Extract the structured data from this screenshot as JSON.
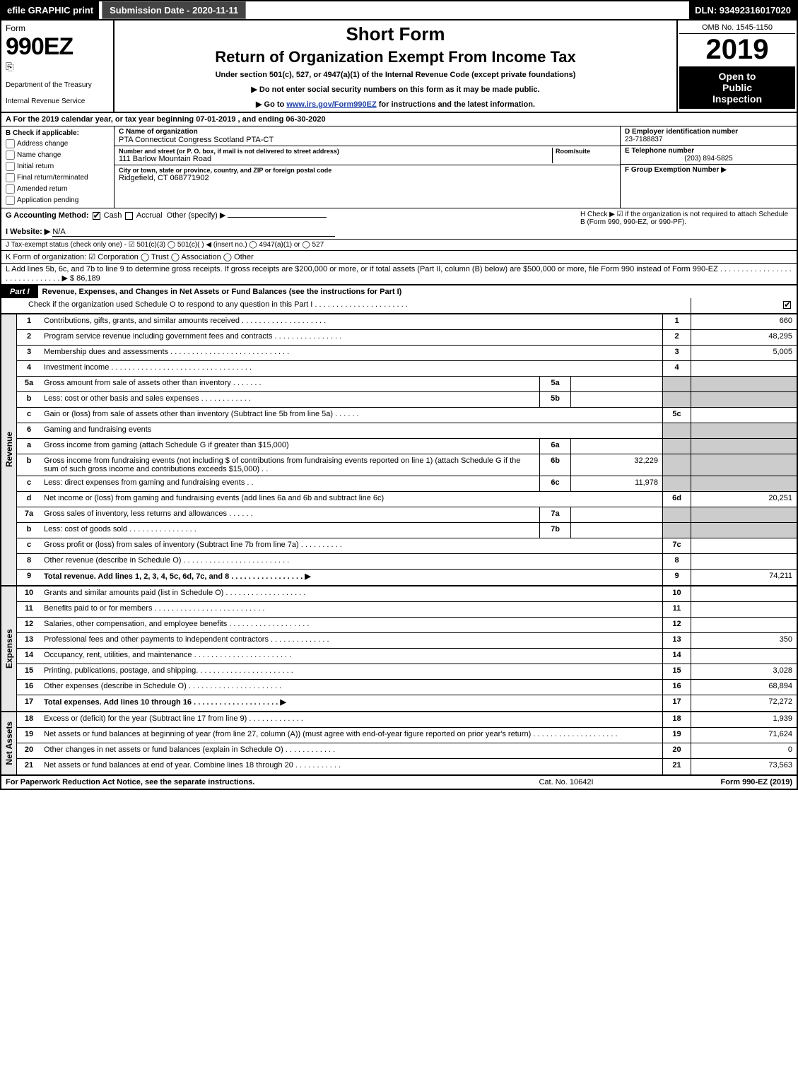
{
  "topbar": {
    "efile": "efile GRAPHIC print",
    "submission": "Submission Date - 2020-11-11",
    "dln": "DLN: 93492316017020"
  },
  "header": {
    "form_word": "Form",
    "form_number": "990EZ",
    "dept": "Department of the Treasury",
    "irs": "Internal Revenue Service",
    "short_form": "Short Form",
    "title": "Return of Organization Exempt From Income Tax",
    "sub1": "Under section 501(c), 527, or 4947(a)(1) of the Internal Revenue Code (except private foundations)",
    "sub2": "▶ Do not enter social security numbers on this form as it may be made public.",
    "sub3_pre": "▶ Go to ",
    "sub3_link": "www.irs.gov/Form990EZ",
    "sub3_post": " for instructions and the latest information.",
    "omb": "OMB No. 1545-1150",
    "year": "2019",
    "open1": "Open to",
    "open2": "Public",
    "open3": "Inspection"
  },
  "tax_year": "A For the 2019 calendar year, or tax year beginning 07-01-2019 , and ending 06-30-2020",
  "box_b": {
    "label": "B Check if applicable:",
    "items": [
      "Address change",
      "Name change",
      "Initial return",
      "Final return/terminated",
      "Amended return",
      "Application pending"
    ]
  },
  "box_c": {
    "label": "C Name of organization",
    "name": "PTA Connecticut Congress Scotland PTA-CT",
    "addr_label": "Number and street (or P. O. box, if mail is not delivered to street address)",
    "room_label": "Room/suite",
    "addr": "111 Barlow Mountain Road",
    "city_label": "City or town, state or province, country, and ZIP or foreign postal code",
    "city": "Ridgefield, CT  068771902"
  },
  "box_d": {
    "label": "D Employer identification number",
    "value": "23-7188837"
  },
  "box_e": {
    "label": "E Telephone number",
    "value": "(203) 894-5825"
  },
  "box_f": {
    "label": "F Group Exemption Number  ▶",
    "value": ""
  },
  "line_g": {
    "label": "G Accounting Method:",
    "cash": "Cash",
    "accrual": "Accrual",
    "other": "Other (specify) ▶",
    "cash_checked": true
  },
  "line_h": "H  Check ▶  ☑  if the organization is not required to attach Schedule B (Form 990, 990-EZ, or 990-PF).",
  "line_i": {
    "label": "I Website: ▶",
    "value": "N/A"
  },
  "line_j": "J Tax-exempt status (check only one) - ☑ 501(c)(3)  ◯ 501(c)(  ) ◀ (insert no.)  ◯ 4947(a)(1) or  ◯ 527",
  "line_k": "K Form of organization:   ☑ Corporation   ◯ Trust   ◯ Association   ◯ Other",
  "line_l": {
    "text": "L Add lines 5b, 6c, and 7b to line 9 to determine gross receipts. If gross receipts are $200,000 or more, or if total assets (Part II, column (B) below) are $500,000 or more, file Form 990 instead of Form 990-EZ  . . . . . . . . . . . . . . . . . . . . . . . . . . . . . .  ▶ $",
    "value": "86,189"
  },
  "part1": {
    "tab": "Part I",
    "title": "Revenue, Expenses, and Changes in Net Assets or Fund Balances (see the instructions for Part I)",
    "check_line": "Check if the organization used Schedule O to respond to any question in this Part I . . . . . . . . . . . . . . . . . . . . . .",
    "check_on": true
  },
  "vtabs": {
    "revenue": "Revenue",
    "expenses": "Expenses",
    "netassets": "Net Assets"
  },
  "rows": [
    {
      "n": "1",
      "desc": "Contributions, gifts, grants, and similar amounts received . . . . . . . . . . . . . . . . . . . .",
      "col": "1",
      "val": "660"
    },
    {
      "n": "2",
      "desc": "Program service revenue including government fees and contracts . . . . . . . . . . . . . . . .",
      "col": "2",
      "val": "48,295"
    },
    {
      "n": "3",
      "desc": "Membership dues and assessments . . . . . . . . . . . . . . . . . . . . . . . . . . . .",
      "col": "3",
      "val": "5,005"
    },
    {
      "n": "4",
      "desc": "Investment income . . . . . . . . . . . . . . . . . . . . . . . . . . . . . . . . .",
      "col": "4",
      "val": ""
    },
    {
      "n": "5a",
      "desc": "Gross amount from sale of assets other than inventory . . . . . . .",
      "sub": "5a",
      "subval": ""
    },
    {
      "n": "b",
      "desc": "Less: cost or other basis and sales expenses . . . . . . . . . . . .",
      "sub": "5b",
      "subval": ""
    },
    {
      "n": "c",
      "desc": "Gain or (loss) from sale of assets other than inventory (Subtract line 5b from line 5a) . . . . . .",
      "col": "5c",
      "val": ""
    },
    {
      "n": "6",
      "desc": "Gaming and fundraising events",
      "noborder": true
    },
    {
      "n": "a",
      "desc": "Gross income from gaming (attach Schedule G if greater than $15,000)",
      "sub": "6a",
      "subval": ""
    },
    {
      "n": "b",
      "desc": "Gross income from fundraising events (not including $               of contributions from fundraising events reported on line 1) (attach Schedule G if the sum of such gross income and contributions exceeds $15,000)   . .",
      "sub": "6b",
      "subval": "32,229"
    },
    {
      "n": "c",
      "desc": "Less: direct expenses from gaming and fundraising events     . .",
      "sub": "6c",
      "subval": "11,978"
    },
    {
      "n": "d",
      "desc": "Net income or (loss) from gaming and fundraising events (add lines 6a and 6b and subtract line 6c)",
      "col": "6d",
      "val": "20,251"
    },
    {
      "n": "7a",
      "desc": "Gross sales of inventory, less returns and allowances . . . . . .",
      "sub": "7a",
      "subval": ""
    },
    {
      "n": "b",
      "desc": "Less: cost of goods sold       . . . . . . . . . . . . . . . .",
      "sub": "7b",
      "subval": ""
    },
    {
      "n": "c",
      "desc": "Gross profit or (loss) from sales of inventory (Subtract line 7b from line 7a) . . . . . . . . . .",
      "col": "7c",
      "val": ""
    },
    {
      "n": "8",
      "desc": "Other revenue (describe in Schedule O) . . . . . . . . . . . . . . . . . . . . . . . . .",
      "col": "8",
      "val": ""
    },
    {
      "n": "9",
      "desc": "Total revenue. Add lines 1, 2, 3, 4, 5c, 6d, 7c, and 8  . . . . . . . . . . . . . . . . .  ▶",
      "col": "9",
      "val": "74,211",
      "bold": true
    }
  ],
  "exp_rows": [
    {
      "n": "10",
      "desc": "Grants and similar amounts paid (list in Schedule O) . . . . . . . . . . . . . . . . . . .",
      "col": "10",
      "val": ""
    },
    {
      "n": "11",
      "desc": "Benefits paid to or for members    . . . . . . . . . . . . . . . . . . . . . . . . . .",
      "col": "11",
      "val": ""
    },
    {
      "n": "12",
      "desc": "Salaries, other compensation, and employee benefits . . . . . . . . . . . . . . . . . . .",
      "col": "12",
      "val": ""
    },
    {
      "n": "13",
      "desc": "Professional fees and other payments to independent contractors . . . . . . . . . . . . . .",
      "col": "13",
      "val": "350"
    },
    {
      "n": "14",
      "desc": "Occupancy, rent, utilities, and maintenance . . . . . . . . . . . . . . . . . . . . . . .",
      "col": "14",
      "val": ""
    },
    {
      "n": "15",
      "desc": "Printing, publications, postage, and shipping. . . . . . . . . . . . . . . . . . . . . . .",
      "col": "15",
      "val": "3,028"
    },
    {
      "n": "16",
      "desc": "Other expenses (describe in Schedule O)    . . . . . . . . . . . . . . . . . . . . . .",
      "col": "16",
      "val": "68,894"
    },
    {
      "n": "17",
      "desc": "Total expenses. Add lines 10 through 16    . . . . . . . . . . . . . . . . . . . .  ▶",
      "col": "17",
      "val": "72,272",
      "bold": true
    }
  ],
  "net_rows": [
    {
      "n": "18",
      "desc": "Excess or (deficit) for the year (Subtract line 17 from line 9)      . . . . . . . . . . . . .",
      "col": "18",
      "val": "1,939"
    },
    {
      "n": "19",
      "desc": "Net assets or fund balances at beginning of year (from line 27, column (A)) (must agree with end-of-year figure reported on prior year's return) . . . . . . . . . . . . . . . . . . . .",
      "col": "19",
      "val": "71,624"
    },
    {
      "n": "20",
      "desc": "Other changes in net assets or fund balances (explain in Schedule O) . . . . . . . . . . . .",
      "col": "20",
      "val": "0"
    },
    {
      "n": "21",
      "desc": "Net assets or fund balances at end of year. Combine lines 18 through 20 . . . . . . . . . . .",
      "col": "21",
      "val": "73,563"
    }
  ],
  "footer": {
    "left": "For Paperwork Reduction Act Notice, see the separate instructions.",
    "mid": "Cat. No. 10642I",
    "right": "Form 990-EZ (2019)"
  },
  "colors": {
    "black": "#000000",
    "white": "#ffffff",
    "shade": "#cccccc",
    "vtab_bg": "#e8e8e8",
    "link": "#2244aa"
  }
}
